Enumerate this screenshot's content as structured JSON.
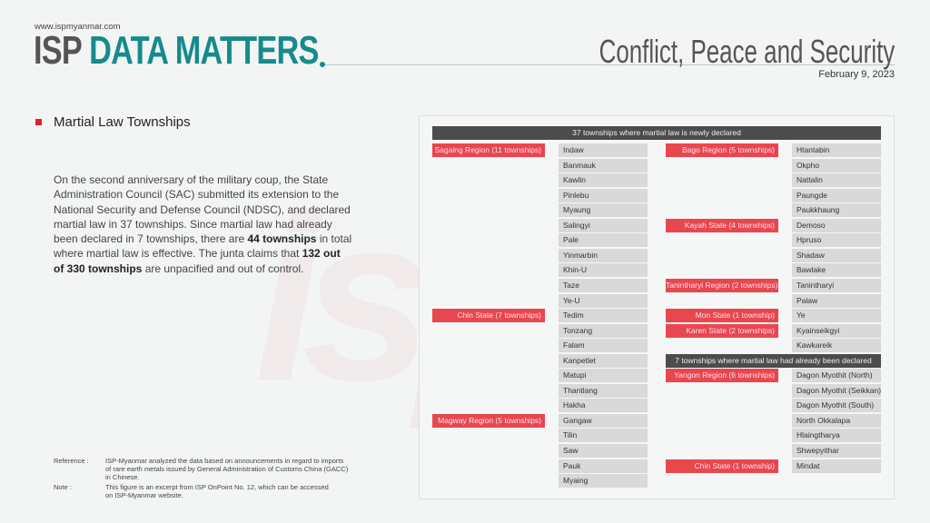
{
  "header": {
    "website": "www.ispmyanmar.com",
    "logo_isp": "ISP",
    "logo_rest": "DATA MATTERS",
    "section": "Conflict, Peace and Security",
    "date": "February 9, 2023"
  },
  "subtitle": "Martial Law Townships",
  "paragraph": {
    "p1": "On the second anniversary of the military coup, the State Administration Council (SAC) submitted its extension to the National Security and Defense Council (NDSC), and declared martial law in 37 townships. Since martial law had already been declared in 7 townships, there are ",
    "b1": "44 townships",
    "p2": " in total where martial law is effective. The junta claims that ",
    "b2": "132 out of 330 townships",
    "p3": " are unpacified and out of control."
  },
  "footnotes": {
    "reference_label": "Reference :",
    "reference": "ISP-Myanmar analyzed the data based on announcements in regard to imports of rare earth metals issued by General Administration of Customs China (GACC) in Chinese.",
    "note_label": "Note :",
    "note": "This figure is an excerpt from ISP OnPoint No. 12, which can be accessed on ISP-Myanmar website."
  },
  "colors": {
    "accent": "#178a8c",
    "region": "#e8474e",
    "bar": "#4c4c4c",
    "township": "#d9d9da"
  },
  "table": {
    "new_header": "37 townships where martial law is newly declared",
    "old_header": "7 townships where martial law had already been declared",
    "left": [
      {
        "region": "Sagaing Region (11 townships)",
        "townships": [
          "Indaw",
          "Banmauk",
          "Kawlin",
          "Pinlebu",
          "Myaung",
          "Salingyi",
          "Pale",
          "Yinmarbin",
          "Khin-U",
          "Taze",
          "Ye-U"
        ]
      },
      {
        "region": "Chin State (7 townships)",
        "townships": [
          "Tedim",
          "Tonzang",
          "Falam",
          "Kanpetlet",
          "Matupi",
          "Thantlang",
          "Hakha"
        ]
      },
      {
        "region": "Magway Region (5 townships)",
        "townships": [
          "Gangaw",
          "Tilin",
          "Saw",
          "Pauk",
          "Myaing"
        ]
      }
    ],
    "right": [
      {
        "region": "Bago Region (5 townships)",
        "townships": [
          "Htantabin",
          "Okpho",
          "Nattalin",
          "Paungde",
          "Paukkhaung"
        ]
      },
      {
        "region": "Kayah State (4 townships)",
        "townships": [
          "Demoso",
          "Hpruso",
          "Shadaw",
          "Bawlake"
        ]
      },
      {
        "region": "Tanintharyi Region (2 townships)",
        "townships": [
          "Tanintharyi",
          "Palaw"
        ]
      },
      {
        "region": "Mon State (1 township)",
        "townships": [
          "Ye"
        ]
      },
      {
        "region": "Karen State (2 townships)",
        "townships": [
          "Kyainseikgyi",
          "Kawkareik"
        ]
      }
    ],
    "right_old": [
      {
        "region": "Yangon Region (6 townships)",
        "townships": [
          "Dagon Myothit (North)",
          "Dagon Myothit (Seikkan)",
          "Dagon Myothit (South)",
          "North Okkalapa",
          "Hlaingtharya",
          "Shwepyithar"
        ]
      },
      {
        "region": "Chin State (1 township)",
        "townships": [
          "Mindat"
        ]
      }
    ]
  }
}
